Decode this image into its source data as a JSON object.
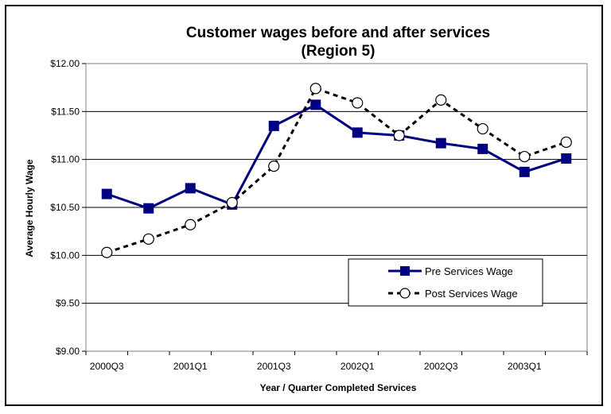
{
  "chart_data": {
    "type": "line",
    "title": "Customer wages before and after services",
    "subtitle": "(Region 5)",
    "xlabel": "Year / Quarter Completed Services",
    "ylabel": "Average Hourly Wage",
    "x_tick_labels": [
      "2000Q3",
      "2001Q1",
      "2001Q3",
      "2002Q1",
      "2002Q3",
      "2003Q1"
    ],
    "x_count": 12,
    "y_tick_labels": [
      "$9.00",
      "$9.50",
      "$10.00",
      "$10.50",
      "$11.00",
      "$11.50",
      "$12.00"
    ],
    "ylim": [
      9.0,
      12.0
    ],
    "y_step": 0.5,
    "grid": true,
    "legend_position": "bottom-right",
    "series": [
      {
        "name": "Pre Services Wage",
        "color": "#000080",
        "marker": "filled-square",
        "line": "solid",
        "values": [
          10.64,
          10.49,
          10.7,
          10.53,
          11.35,
          11.57,
          11.28,
          11.25,
          11.17,
          11.11,
          10.87,
          11.01
        ]
      },
      {
        "name": "Post Services Wage",
        "color": "#000000",
        "marker": "open-circle",
        "line": "dashed",
        "values": [
          10.03,
          10.17,
          10.32,
          10.55,
          10.93,
          11.74,
          11.59,
          11.25,
          11.62,
          11.32,
          11.03,
          11.18
        ]
      }
    ]
  }
}
